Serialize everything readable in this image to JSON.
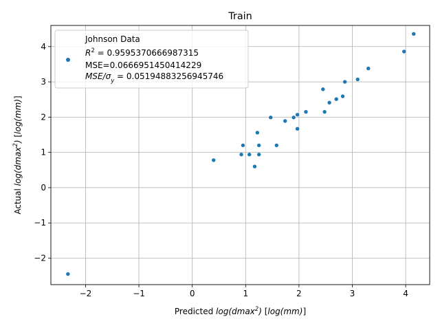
{
  "chart_data": {
    "type": "scatter",
    "title": "Train",
    "xlabel": "Predicted log(dmax²) [log(mm)]",
    "ylabel": "Actual log(dmax²) [log(mm)]",
    "xlim": [
      -2.65,
      4.45
    ],
    "ylim": [
      -2.75,
      4.6
    ],
    "xticks": [
      -2,
      -1,
      0,
      1,
      2,
      3,
      4
    ],
    "yticks": [
      -2,
      -1,
      0,
      1,
      2,
      3,
      4
    ],
    "xtick_labels": [
      "−2",
      "−1",
      "0",
      "1",
      "2",
      "3",
      "4"
    ],
    "ytick_labels": [
      "−2",
      "−1",
      "0",
      "1",
      "2",
      "3",
      "4"
    ],
    "grid": true,
    "legend_position": "top-left",
    "legend": {
      "series_name": "Johnson Data",
      "r2_line": "R² = 0.9595370666987315",
      "mse_line": "MSE=0.0666951450414229",
      "mse_sigma_line": "MSE/σy = 0.05194883256945746"
    },
    "series": [
      {
        "name": "Johnson Data",
        "color": "#1f77b4",
        "points": [
          [
            -2.33,
            -2.45
          ],
          [
            0.4,
            0.78
          ],
          [
            0.92,
            0.94
          ],
          [
            0.95,
            1.2
          ],
          [
            1.07,
            0.94
          ],
          [
            1.17,
            0.6
          ],
          [
            1.22,
            1.56
          ],
          [
            1.25,
            0.94
          ],
          [
            1.25,
            1.2
          ],
          [
            1.47,
            1.99
          ],
          [
            1.58,
            1.2
          ],
          [
            1.74,
            1.89
          ],
          [
            1.9,
            1.99
          ],
          [
            1.97,
            1.67
          ],
          [
            1.97,
            2.07
          ],
          [
            2.13,
            2.15
          ],
          [
            2.45,
            2.79
          ],
          [
            2.48,
            2.15
          ],
          [
            2.57,
            2.41
          ],
          [
            2.7,
            2.51
          ],
          [
            2.82,
            2.59
          ],
          [
            2.86,
            3.0
          ],
          [
            3.1,
            3.07
          ],
          [
            3.3,
            3.38
          ],
          [
            3.97,
            3.86
          ],
          [
            4.15,
            4.36
          ]
        ]
      }
    ]
  }
}
